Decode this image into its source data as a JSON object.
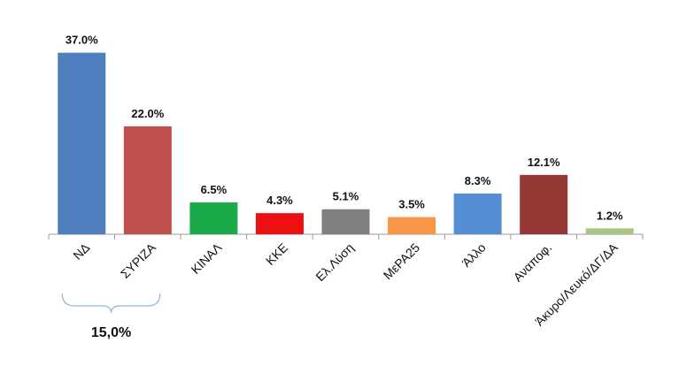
{
  "chart_data": {
    "type": "bar",
    "categories": [
      "ΝΔ",
      "ΣΥΡΙΖΑ",
      "ΚΙΝΑΛ",
      "ΚΚΕ",
      "Ελ.Λύση",
      "ΜεΡΑ25",
      "Άλλο",
      "Αναποφ.",
      "Άκυρο/Λευκό/ΔΓ/ΔΑ"
    ],
    "values": [
      37.0,
      22.0,
      6.5,
      4.3,
      5.1,
      3.5,
      8.3,
      12.1,
      1.2
    ],
    "value_labels": [
      "37.0%",
      "22.0%",
      "6.5%",
      "4.3%",
      "5.1%",
      "3.5%",
      "8.3%",
      "12.1%",
      "1.2%"
    ],
    "colors": [
      "#4f7fbf",
      "#c0504d",
      "#1aaa4a",
      "#ee1111",
      "#808080",
      "#f79646",
      "#558ed5",
      "#953735",
      "#a9c486"
    ],
    "ylim": [
      0,
      40
    ],
    "annotation": {
      "text": "15,0%",
      "spans": [
        "ΝΔ",
        "ΣΥΡΙΖΑ"
      ]
    }
  }
}
